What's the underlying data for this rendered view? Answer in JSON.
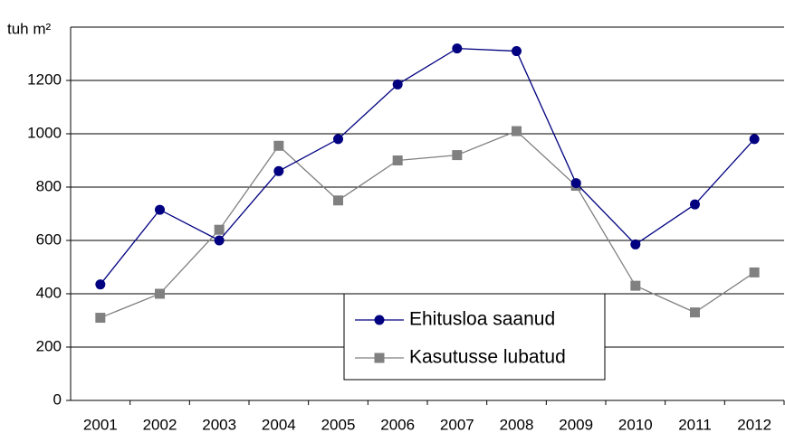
{
  "chart_data": {
    "type": "line",
    "y_label": "tuh m²",
    "categories": [
      "2001",
      "2002",
      "2003",
      "2004",
      "2005",
      "2006",
      "2007",
      "2008",
      "2009",
      "2010",
      "2011",
      "2012"
    ],
    "series": [
      {
        "name": "Ehitusloa saanud",
        "color": "#000080",
        "marker": "circle",
        "values": [
          435,
          715,
          600,
          860,
          980,
          1185,
          1320,
          1310,
          815,
          585,
          735,
          980
        ]
      },
      {
        "name": "Kasutusse lubatud",
        "color": "#808080",
        "marker": "square",
        "values": [
          310,
          400,
          640,
          955,
          750,
          900,
          920,
          1010,
          805,
          430,
          330,
          480
        ]
      }
    ],
    "ylim": [
      0,
      1400
    ],
    "yticks": [
      0,
      200,
      400,
      600,
      800,
      1000,
      1200
    ],
    "grid": true
  }
}
